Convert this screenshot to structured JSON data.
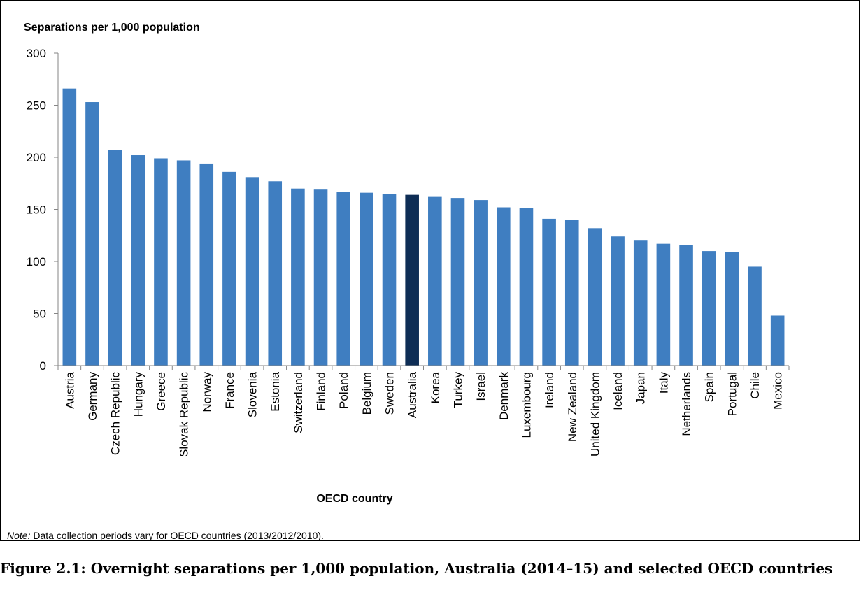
{
  "chart_data": {
    "type": "bar",
    "ylabel": "Separations per 1,000 population",
    "xlabel": "OECD country",
    "ylim": [
      0,
      300
    ],
    "yticks": [
      0,
      50,
      100,
      150,
      200,
      250,
      300
    ],
    "grid": false,
    "categories": [
      "Austria",
      "Germany",
      "Czech Republic",
      "Hungary",
      "Greece",
      "Slovak Republic",
      "Norway",
      "France",
      "Slovenia",
      "Estonia",
      "Switzerland",
      "Finland",
      "Poland",
      "Belgium",
      "Sweden",
      "Australia",
      "Korea",
      "Turkey",
      "Israel",
      "Denmark",
      "Luxembourg",
      "Ireland",
      "New Zealand",
      "United Kingdom",
      "Iceland",
      "Japan",
      "Italy",
      "Netherlands",
      "Spain",
      "Portugal",
      "Chile",
      "Mexico"
    ],
    "values": [
      266,
      253,
      207,
      202,
      199,
      197,
      194,
      186,
      181,
      177,
      170,
      169,
      167,
      166,
      165,
      164,
      162,
      161,
      159,
      152,
      151,
      141,
      140,
      132,
      124,
      120,
      117,
      116,
      110,
      109,
      95,
      48
    ],
    "colors": {
      "default": "#3F7EC1",
      "highlight": "#0E2D55",
      "highlight_category": "Australia"
    }
  },
  "note": {
    "lead": "Note:",
    "text": " Data collection periods vary for OECD countries (2013/2012/2010)."
  },
  "caption": "Figure 2.1: Overnight separations per 1,000 population, Australia (2014–15) and selected OECD countries"
}
